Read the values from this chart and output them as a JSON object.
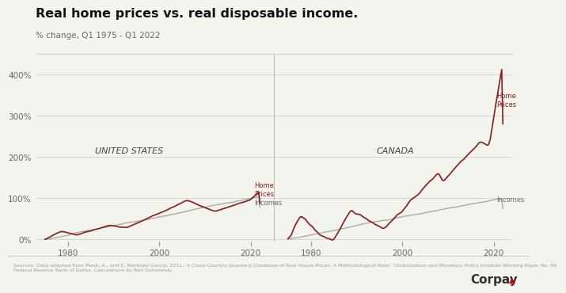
{
  "title": "Real home prices vs. real disposable income.",
  "subtitle": "% change, Q1 1975 - Q1 2022",
  "background_color": "#f4f4ef",
  "home_prices_color": "#8b1a1a",
  "incomes_color": "#aaaaaa",
  "ylim": [
    -0.05,
    4.5
  ],
  "yticks": [
    0,
    1.0,
    2.0,
    3.0,
    4.0
  ],
  "ytick_labels": [
    "0%",
    "100%",
    "200%",
    "300%",
    "400%"
  ],
  "us_label": "UNITED STATES",
  "canada_label": "CANADA",
  "source_text": "Sources: Data adapted from Mack, A., and E. Martinez-Garcia, 2011. 'A Cross-Country Quarterly Database of Real House Prices: A Methodological Note.' Globalization and Monetary Policy Institute Working Paper No. 99,\nFederal Reserve Bank of Dallas. Calculations by Neil Dohannidy.",
  "us_xticks": [
    1980,
    2000,
    2020
  ],
  "ca_xticks": [
    1980,
    2000,
    2020
  ]
}
